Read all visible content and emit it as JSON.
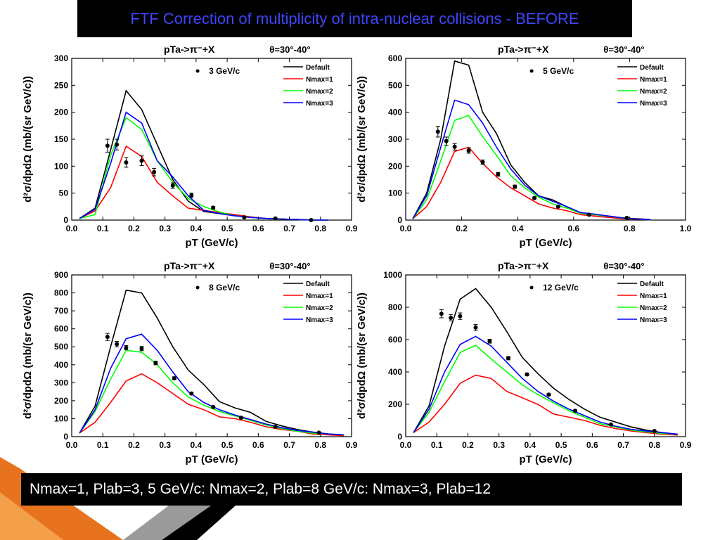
{
  "slide": {
    "title": "FTF Correction of multiplicity of intra-nuclear collisions - BEFORE",
    "caption": "Nmax=1, Plab=3, 5 GeV/c: Nmax=2, Plab=8 GeV/c: Nmax=3, Plab=12",
    "title_color": "#3f46ff"
  },
  "colors": {
    "Default": "#000000",
    "Nmax=1": "#ff0000",
    "Nmax=2": "#00ff00",
    "Nmax=3": "#0000ff"
  },
  "chart_data": [
    {
      "type": "line",
      "reaction": "pTa->π⁻+X",
      "angle": "θ=30°-40°",
      "xlabel": "pT (GeV/c)",
      "ylabel": "d²σ/dpdΩ (mb/(sr GeV/c))",
      "xlim": [
        0,
        0.9
      ],
      "ylim": [
        0,
        300
      ],
      "xticks": [
        0.0,
        0.1,
        0.2,
        0.3,
        0.4,
        0.5,
        0.6,
        0.7,
        0.8,
        0.9
      ],
      "yticks": [
        0,
        50,
        100,
        150,
        200,
        250,
        300
      ],
      "grid": false,
      "legend_position": "top-right",
      "data_label": "3 GeV/c",
      "data": {
        "x": [
          0.115,
          0.145,
          0.175,
          0.225,
          0.265,
          0.325,
          0.385,
          0.455,
          0.555,
          0.655,
          0.77
        ],
        "y": [
          138,
          140,
          107,
          110,
          89,
          64,
          46,
          23,
          5,
          3,
          0
        ],
        "err": [
          12,
          10,
          9,
          9,
          7,
          5,
          4,
          2,
          1,
          1,
          0
        ]
      },
      "series": [
        {
          "name": "Default",
          "x": [
            0.025,
            0.075,
            0.125,
            0.175,
            0.225,
            0.275,
            0.325,
            0.375,
            0.425,
            0.475,
            0.525,
            0.575,
            0.625,
            0.675,
            0.725,
            0.775,
            0.825
          ],
          "y": [
            3,
            22,
            130,
            240,
            205,
            140,
            75,
            35,
            16,
            12,
            8,
            5,
            3,
            2,
            1,
            0,
            0
          ]
        },
        {
          "name": "Nmax=1",
          "x": [
            0.025,
            0.075,
            0.125,
            0.175,
            0.225,
            0.275,
            0.325,
            0.375,
            0.425,
            0.475,
            0.525,
            0.575,
            0.625,
            0.675,
            0.725,
            0.775,
            0.825
          ],
          "y": [
            3,
            17,
            60,
            137,
            118,
            70,
            45,
            22,
            18,
            14,
            10,
            6,
            3,
            2,
            1,
            0,
            0
          ]
        },
        {
          "name": "Nmax=2",
          "x": [
            0.025,
            0.075,
            0.125,
            0.175,
            0.225,
            0.275,
            0.325,
            0.375,
            0.425,
            0.475,
            0.525,
            0.575,
            0.625,
            0.675,
            0.725,
            0.775,
            0.825
          ],
          "y": [
            3,
            10,
            120,
            190,
            168,
            110,
            70,
            40,
            25,
            15,
            8,
            5,
            3,
            2,
            1,
            0,
            0
          ]
        },
        {
          "name": "Nmax=3",
          "x": [
            0.025,
            0.075,
            0.125,
            0.175,
            0.225,
            0.275,
            0.325,
            0.375,
            0.425,
            0.475,
            0.525,
            0.575,
            0.625,
            0.675,
            0.725,
            0.775,
            0.825
          ],
          "y": [
            3,
            20,
            105,
            200,
            180,
            110,
            80,
            45,
            18,
            12,
            8,
            5,
            3,
            2,
            1,
            0,
            0
          ]
        }
      ]
    },
    {
      "type": "line",
      "reaction": "pTa->π⁻+X",
      "angle": "θ=30°-40°",
      "xlabel": "pT (GeV/c)",
      "ylabel": "d²σ/dpdΩ (mb/(sr GeV/c))",
      "xlim": [
        0,
        1.0
      ],
      "ylim": [
        0,
        600
      ],
      "xticks": [
        0.0,
        0.2,
        0.4,
        0.6,
        0.8,
        1.0
      ],
      "yticks": [
        0,
        100,
        200,
        300,
        400,
        500,
        600
      ],
      "grid": false,
      "legend_position": "top-right",
      "data_label": "5 GeV/c",
      "data": {
        "x": [
          0.115,
          0.145,
          0.175,
          0.225,
          0.275,
          0.33,
          0.39,
          0.46,
          0.545,
          0.655,
          0.79
        ],
        "y": [
          328,
          293,
          272,
          258,
          215,
          170,
          124,
          82,
          50,
          20,
          8
        ],
        "err": [
          20,
          15,
          12,
          10,
          8,
          7,
          6,
          4,
          3,
          2,
          1
        ]
      },
      "series": [
        {
          "name": "Default",
          "x": [
            0.025,
            0.075,
            0.125,
            0.175,
            0.225,
            0.275,
            0.325,
            0.375,
            0.425,
            0.475,
            0.525,
            0.575,
            0.625,
            0.675,
            0.725,
            0.775,
            0.825,
            0.875
          ],
          "y": [
            5,
            100,
            300,
            590,
            575,
            400,
            320,
            205,
            140,
            90,
            75,
            50,
            25,
            20,
            15,
            8,
            5,
            2
          ]
        },
        {
          "name": "Nmax=1",
          "x": [
            0.025,
            0.075,
            0.125,
            0.175,
            0.225,
            0.275,
            0.325,
            0.375,
            0.425,
            0.475,
            0.525,
            0.575,
            0.625,
            0.675,
            0.725,
            0.775,
            0.825,
            0.875
          ],
          "y": [
            5,
            50,
            140,
            255,
            270,
            210,
            160,
            120,
            90,
            60,
            45,
            35,
            20,
            15,
            10,
            5,
            3,
            1
          ]
        },
        {
          "name": "Nmax=2",
          "x": [
            0.025,
            0.075,
            0.125,
            0.175,
            0.225,
            0.275,
            0.325,
            0.375,
            0.425,
            0.475,
            0.525,
            0.575,
            0.625,
            0.675,
            0.725,
            0.775,
            0.825,
            0.875
          ],
          "y": [
            5,
            75,
            220,
            370,
            388,
            310,
            240,
            165,
            120,
            85,
            60,
            45,
            25,
            20,
            14,
            8,
            4,
            1
          ]
        },
        {
          "name": "Nmax=3",
          "x": [
            0.025,
            0.075,
            0.125,
            0.175,
            0.225,
            0.275,
            0.325,
            0.375,
            0.425,
            0.475,
            0.525,
            0.575,
            0.625,
            0.675,
            0.725,
            0.775,
            0.825,
            0.875
          ],
          "y": [
            5,
            90,
            270,
            445,
            428,
            360,
            270,
            190,
            130,
            90,
            70,
            50,
            28,
            22,
            15,
            8,
            4,
            1
          ]
        }
      ]
    },
    {
      "type": "line",
      "reaction": "pTa->π⁻+X",
      "angle": "θ=30°-40°",
      "xlabel": "pT (GeV/c)",
      "ylabel": "d²σ/dpdΩ (mb/(sr GeV/c))",
      "xlim": [
        0,
        0.9
      ],
      "ylim": [
        0,
        900
      ],
      "xticks": [
        0.0,
        0.1,
        0.2,
        0.3,
        0.4,
        0.5,
        0.6,
        0.7,
        0.8,
        0.9
      ],
      "yticks": [
        0,
        100,
        200,
        300,
        400,
        500,
        600,
        700,
        800,
        900
      ],
      "grid": false,
      "legend_position": "top-right",
      "data_label": "8 GeV/c",
      "data": {
        "x": [
          0.115,
          0.145,
          0.175,
          0.225,
          0.27,
          0.33,
          0.385,
          0.455,
          0.545,
          0.655,
          0.795
        ],
        "y": [
          555,
          515,
          495,
          490,
          410,
          325,
          240,
          165,
          105,
          55,
          22
        ],
        "err": [
          20,
          15,
          12,
          12,
          10,
          8,
          6,
          5,
          4,
          3,
          2
        ]
      },
      "series": [
        {
          "name": "Default",
          "x": [
            0.025,
            0.075,
            0.125,
            0.175,
            0.225,
            0.275,
            0.325,
            0.375,
            0.425,
            0.475,
            0.525,
            0.575,
            0.625,
            0.675,
            0.725,
            0.775,
            0.825,
            0.875
          ],
          "y": [
            20,
            170,
            500,
            815,
            800,
            660,
            500,
            370,
            290,
            195,
            160,
            135,
            85,
            60,
            40,
            25,
            15,
            10
          ]
        },
        {
          "name": "Nmax=1",
          "x": [
            0.025,
            0.075,
            0.125,
            0.175,
            0.225,
            0.275,
            0.325,
            0.375,
            0.425,
            0.475,
            0.525,
            0.575,
            0.625,
            0.675,
            0.725,
            0.775,
            0.825,
            0.875
          ],
          "y": [
            20,
            80,
            190,
            310,
            350,
            300,
            240,
            180,
            150,
            110,
            100,
            80,
            55,
            40,
            30,
            15,
            10,
            5
          ]
        },
        {
          "name": "Nmax=2",
          "x": [
            0.025,
            0.075,
            0.125,
            0.175,
            0.225,
            0.275,
            0.325,
            0.375,
            0.425,
            0.475,
            0.525,
            0.575,
            0.625,
            0.675,
            0.725,
            0.775,
            0.825,
            0.875
          ],
          "y": [
            20,
            140,
            320,
            480,
            470,
            400,
            300,
            220,
            175,
            140,
            115,
            90,
            65,
            45,
            30,
            20,
            15,
            10
          ]
        },
        {
          "name": "Nmax=3",
          "x": [
            0.025,
            0.075,
            0.125,
            0.175,
            0.225,
            0.275,
            0.325,
            0.375,
            0.425,
            0.475,
            0.525,
            0.575,
            0.625,
            0.675,
            0.725,
            0.775,
            0.825,
            0.875
          ],
          "y": [
            20,
            150,
            380,
            545,
            570,
            480,
            360,
            250,
            190,
            150,
            120,
            95,
            70,
            50,
            35,
            25,
            15,
            10
          ]
        }
      ]
    },
    {
      "type": "line",
      "reaction": "pTa->π⁻+X",
      "angle": "θ=30°-40°",
      "xlabel": "pT (GeV/c)",
      "ylabel": "d²σ/dpdΩ (mb/(sr GeV/c))",
      "xlim": [
        0,
        0.9
      ],
      "ylim": [
        0,
        1000
      ],
      "xticks": [
        0.0,
        0.1,
        0.2,
        0.3,
        0.4,
        0.5,
        0.6,
        0.7,
        0.8,
        0.9
      ],
      "yticks": [
        0,
        200,
        400,
        600,
        800,
        1000
      ],
      "grid": false,
      "legend_position": "top-right",
      "data_label": "12 GeV/c",
      "data": {
        "x": [
          0.115,
          0.145,
          0.175,
          0.225,
          0.27,
          0.33,
          0.39,
          0.46,
          0.545,
          0.66,
          0.8
        ],
        "y": [
          760,
          735,
          745,
          675,
          590,
          485,
          385,
          260,
          160,
          75,
          35
        ],
        "err": [
          25,
          20,
          20,
          18,
          12,
          10,
          8,
          6,
          5,
          3,
          2
        ]
      },
      "series": [
        {
          "name": "Default",
          "x": [
            0.025,
            0.075,
            0.125,
            0.175,
            0.225,
            0.275,
            0.325,
            0.375,
            0.425,
            0.475,
            0.525,
            0.575,
            0.625,
            0.675,
            0.725,
            0.775,
            0.825,
            0.875
          ],
          "y": [
            25,
            190,
            560,
            850,
            915,
            800,
            650,
            490,
            390,
            300,
            230,
            170,
            120,
            90,
            60,
            40,
            25,
            15
          ]
        },
        {
          "name": "Nmax=1",
          "x": [
            0.025,
            0.075,
            0.125,
            0.175,
            0.225,
            0.275,
            0.325,
            0.375,
            0.425,
            0.475,
            0.525,
            0.575,
            0.625,
            0.675,
            0.725,
            0.775,
            0.825,
            0.875
          ],
          "y": [
            25,
            90,
            200,
            330,
            380,
            360,
            280,
            240,
            200,
            140,
            120,
            100,
            70,
            50,
            35,
            25,
            15,
            10
          ]
        },
        {
          "name": "Nmax=2",
          "x": [
            0.025,
            0.075,
            0.125,
            0.175,
            0.225,
            0.275,
            0.325,
            0.375,
            0.425,
            0.475,
            0.525,
            0.575,
            0.625,
            0.675,
            0.725,
            0.775,
            0.825,
            0.875
          ],
          "y": [
            25,
            150,
            340,
            520,
            565,
            480,
            400,
            320,
            260,
            210,
            160,
            120,
            80,
            60,
            40,
            30,
            20,
            15
          ]
        },
        {
          "name": "Nmax=3",
          "x": [
            0.025,
            0.075,
            0.125,
            0.175,
            0.225,
            0.275,
            0.325,
            0.375,
            0.425,
            0.475,
            0.525,
            0.575,
            0.625,
            0.675,
            0.725,
            0.775,
            0.825,
            0.875
          ],
          "y": [
            25,
            170,
            400,
            570,
            620,
            560,
            460,
            360,
            280,
            220,
            170,
            130,
            90,
            65,
            45,
            35,
            25,
            15
          ]
        }
      ]
    }
  ]
}
